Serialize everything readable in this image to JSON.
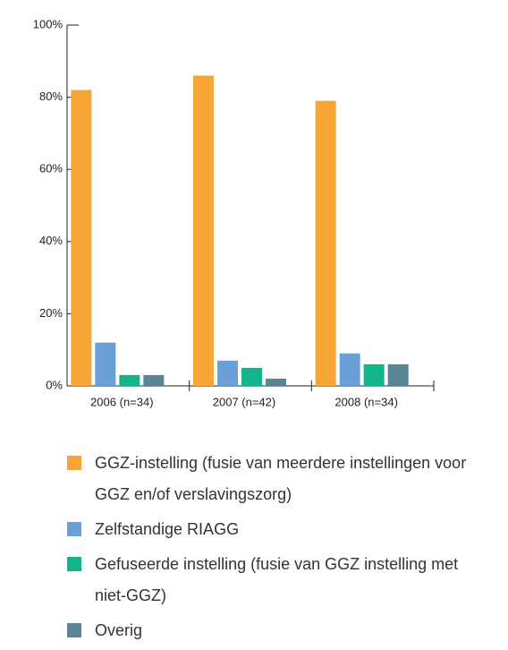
{
  "chart_data": {
    "type": "bar",
    "categories": [
      "2006 (n=34)",
      "2007 (n=42)",
      "2008 (n=34)"
    ],
    "series": [
      {
        "name": "GGZ-instelling (fusie van meerdere instellingen voor GGZ en/of verslavingszorg)",
        "color": "#f7a535",
        "values": [
          82,
          86,
          79
        ]
      },
      {
        "name": "Zelfstandige RIAGG",
        "color": "#6a9fd8",
        "values": [
          12,
          7,
          9
        ]
      },
      {
        "name": "Gefuseerde instelling (fusie van GGZ instelling met niet-GGZ)",
        "color": "#14b48a",
        "values": [
          3,
          5,
          6
        ]
      },
      {
        "name": "Overig",
        "color": "#5a8595",
        "values": [
          3,
          2,
          6
        ]
      }
    ],
    "ylim": [
      0,
      100
    ],
    "yticks": [
      {
        "value": 0,
        "label": "0%"
      },
      {
        "value": 20,
        "label": "20%"
      },
      {
        "value": 40,
        "label": "40%"
      },
      {
        "value": 60,
        "label": "60%"
      },
      {
        "value": 80,
        "label": "80%"
      },
      {
        "value": 100,
        "label": "100%"
      }
    ],
    "grid": false
  }
}
